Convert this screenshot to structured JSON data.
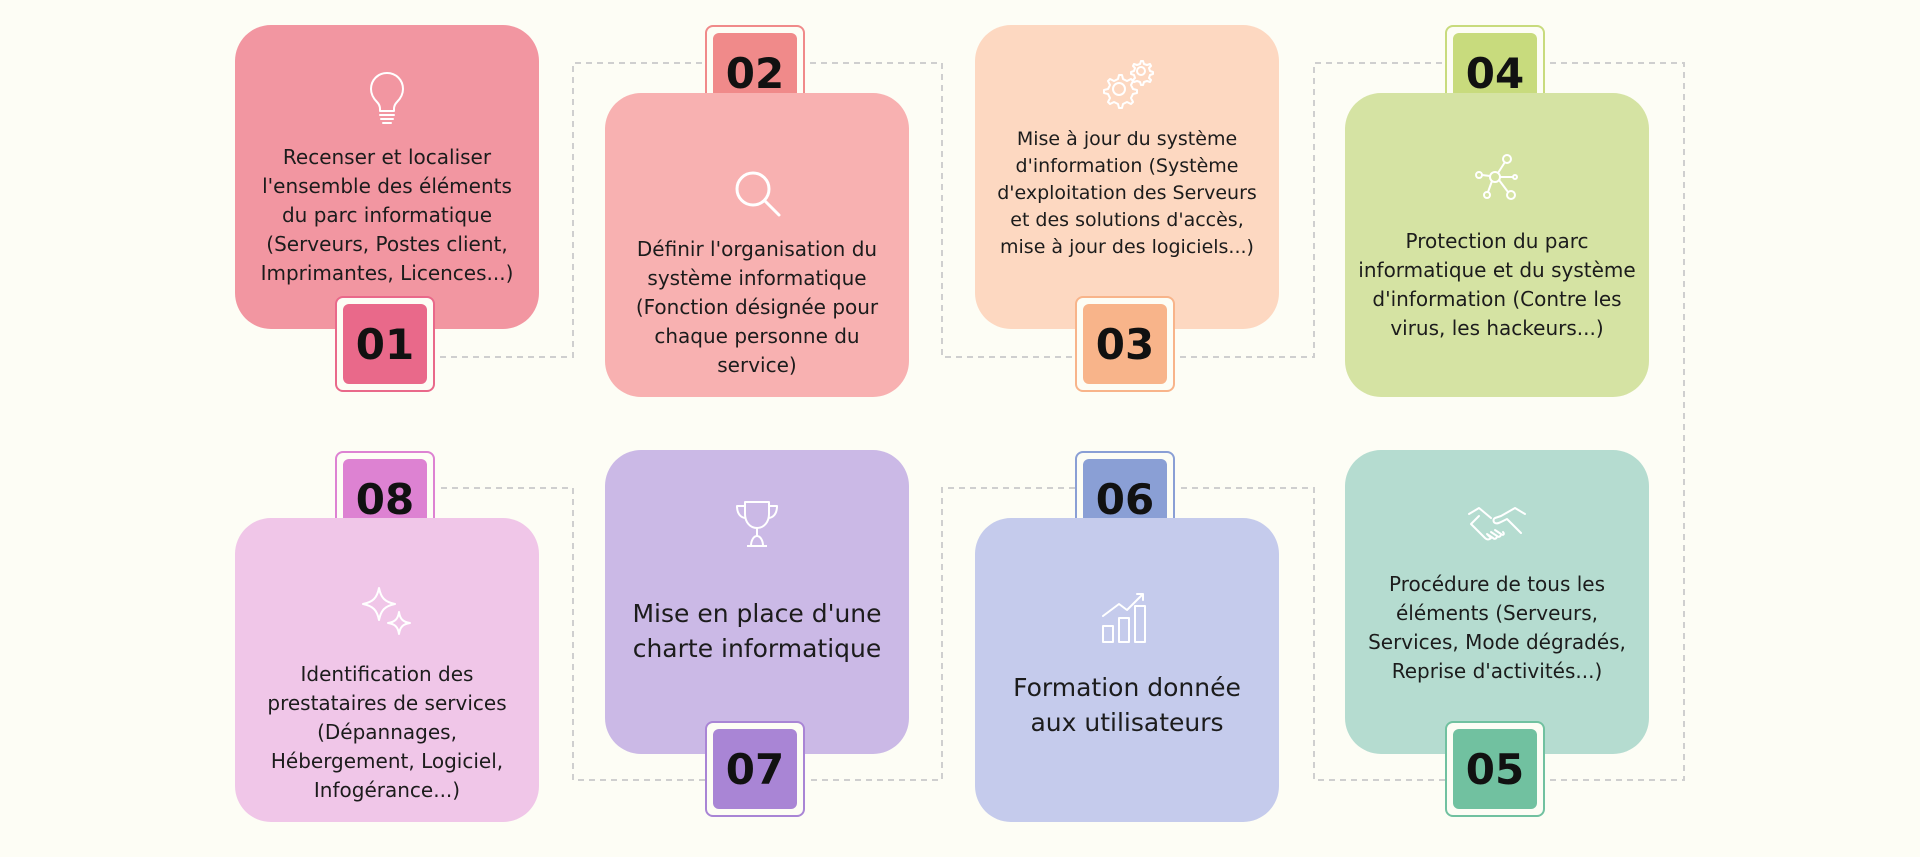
{
  "steps": [
    {
      "number": "01",
      "text": "Recenser et localiser l'ensemble des éléments du parc informatique (Serveurs, Postes client, Imprimantes, Licences...)",
      "icon": "lightbulb-icon",
      "card_color": "#f296a1",
      "badge_color": "#e9698a"
    },
    {
      "number": "02",
      "text": "Définir l'organisation du système informatique (Fonction désignée pour chaque personne du service)",
      "icon": "magnifier-icon",
      "card_color": "#f8b1b1",
      "badge_color": "#f08a8a"
    },
    {
      "number": "03",
      "text": "Mise à jour du système d'information (Système d'exploitation des Serveurs et des solutions d'accès, mise à jour des logiciels...)",
      "icon": "gears-icon",
      "card_color": "#fdd8c1",
      "badge_color": "#f8b48a"
    },
    {
      "number": "04",
      "text": "Protection du parc informatique et du système d'information (Contre les virus, les hackeurs...)",
      "icon": "network-icon",
      "card_color": "#d5e3a3",
      "badge_color": "#c8db7d"
    },
    {
      "number": "05",
      "text": "Procédure de tous les éléments (Serveurs, Services, Mode dégradés, Reprise d'activités...)",
      "icon": "handshake-icon",
      "card_color": "#b5dcd0",
      "badge_color": "#71c1a0"
    },
    {
      "number": "06",
      "text": "Formation donnée aux utilisateurs",
      "icon": "growth-chart-icon",
      "card_color": "#c5cbec",
      "badge_color": "#8a9fd5"
    },
    {
      "number": "07",
      "text": "Mise en place d'une charte informatique",
      "icon": "trophy-icon",
      "card_color": "#cbb9e6",
      "badge_color": "#a985d5"
    },
    {
      "number": "08",
      "text": "Identification des prestataires de services (Dépannages, Hébergement, Logiciel, Infogérance...)",
      "icon": "sparkle-icon",
      "card_color": "#f0c6e8",
      "badge_color": "#dd82d2"
    }
  ]
}
